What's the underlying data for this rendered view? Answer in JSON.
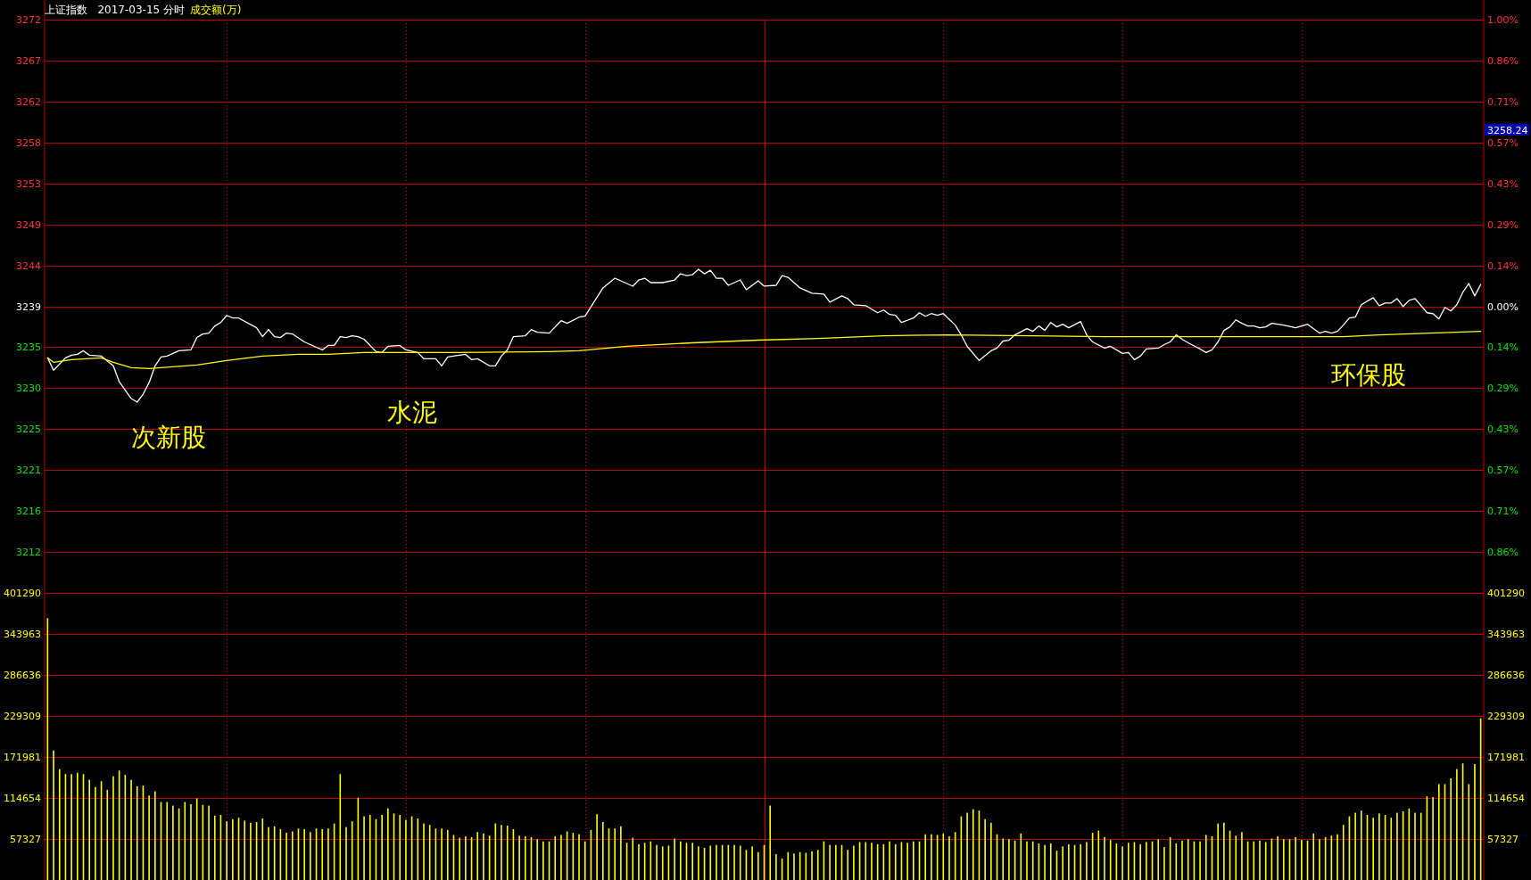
{
  "chart_data": [
    {
      "type": "line",
      "title": "上证指数   2017-03-15 分时",
      "tick_labels": "y",
      "grid": true,
      "categories": [
        null,
        null,
        null,
        null,
        null,
        null,
        null,
        null,
        null,
        null,
        null,
        null,
        null,
        null,
        null,
        null,
        null,
        null,
        null,
        null,
        null,
        null,
        null,
        null,
        null,
        null,
        null,
        null,
        null,
        null,
        null,
        null,
        null,
        null,
        null,
        null,
        null,
        null,
        null,
        null,
        null,
        null,
        null,
        null,
        null,
        null,
        null,
        null,
        null,
        null,
        null,
        null,
        null,
        null,
        null,
        null,
        null,
        null,
        null,
        null,
        null,
        null,
        null,
        null,
        null,
        null,
        null,
        null,
        null,
        null,
        null,
        null,
        null,
        null,
        null,
        null,
        null,
        null,
        null,
        null,
        null,
        null,
        null,
        null,
        null,
        null,
        null,
        null,
        null,
        null,
        null,
        null,
        null,
        null,
        null,
        null,
        null,
        null,
        null,
        null,
        null,
        null,
        null,
        null,
        null,
        null,
        null,
        null,
        null,
        null,
        null,
        null,
        null,
        null,
        null,
        null,
        null,
        null,
        null,
        null,
        null,
        null,
        null,
        null,
        null,
        null,
        null,
        null,
        null,
        null,
        null,
        null,
        null,
        null,
        null,
        null,
        null,
        null,
        null,
        null,
        null,
        null,
        null,
        null,
        null,
        null,
        null,
        null,
        null,
        null,
        null,
        null,
        null,
        null,
        null,
        null,
        null,
        null,
        null,
        null,
        null,
        null,
        null,
        null,
        null,
        null,
        null,
        null,
        null,
        null,
        null,
        null,
        null,
        null,
        null,
        null,
        null,
        null,
        null,
        null,
        null,
        null,
        null,
        null,
        null,
        null,
        null,
        null,
        null,
        null,
        null,
        null,
        null,
        null,
        null,
        null,
        null,
        null,
        null,
        null,
        null,
        null,
        null,
        null,
        null,
        null,
        null,
        null,
        null,
        null,
        null,
        null,
        null,
        null,
        null,
        null,
        null,
        null,
        null,
        null,
        null,
        null,
        null,
        null,
        null,
        null,
        null,
        null,
        null,
        null,
        null,
        null,
        null,
        null,
        null,
        null,
        null,
        null,
        null,
        null,
        null
      ],
      "series": [
        {
          "color": "#ffffff",
          "values": [
            3233.5,
            3232.1,
            null,
            3233.5,
            3233.8,
            3233.9,
            3234.3,
            3233.8,
            null,
            3233.7,
            null,
            3232.6,
            3230.8,
            null,
            3228.9,
            3228.5,
            3229.4,
            3230.7,
            3232.6,
            3233.6,
            3233.7,
            null,
            3234.3,
            null,
            3234.4,
            3235.8,
            3236.2,
            3236.3,
            3237.1,
            3237.5,
            3238.3,
            3238.0,
            3238.0,
            null,
            null,
            3236.9,
            3235.9,
            3236.7,
            3235.9,
            3235.8,
            3236.3,
            3236.2,
            null,
            3235.3,
            3235.0,
            null,
            3234.4,
            3234.9,
            3234.9,
            3235.9,
            3235.8,
            3236.0,
            3235.9,
            3235.6,
            null,
            3234.2,
            3234.1,
            3234.8,
            null,
            3234.9,
            3234.4,
            null,
            3234.1,
            3233.4,
            null,
            3233.4,
            3232.6,
            3233.6,
            null,
            null,
            3233.9,
            3233.3,
            3233.4,
            null,
            3232.6,
            3232.6,
            3233.7,
            3234.4,
            3235.9,
            null,
            3236.0,
            3236.7,
            3236.4,
            null,
            3236.3,
            null,
            3237.7,
            3237.4,
            null,
            3238.1,
            3238.2,
            null,
            null,
            3241.4,
            null,
            3242.5,
            null,
            null,
            3241.6,
            3242.3,
            3242.5,
            3242.0,
            null,
            3242.0,
            null,
            3242.3,
            3243.0,
            3242.8,
            3242.9,
            3243.5,
            3243.0,
            3243.4,
            3242.5,
            3242.5,
            3241.7,
            null,
            3242.3,
            3241.2,
            null,
            3242.2,
            3241.6,
            null,
            3241.7,
            3242.8,
            3242.6,
            null,
            3241.4,
            null,
            3240.8,
            null,
            3240.7,
            3239.8,
            null,
            3240.5,
            3240.2,
            3239.5,
            null,
            3239.4,
            null,
            3238.6,
            3238.9,
            3238.4,
            3238.3,
            3237.5,
            null,
            3238.0,
            3238.6,
            3238.2,
            3238.5,
            3238.3,
            3238.5,
            null,
            3237.2,
            3236.1,
            3234.8,
            null,
            3233.2,
            null,
            3234.3,
            3234.6,
            3235.4,
            3235.5,
            3236.1,
            null,
            3236.8,
            3236.5,
            3237.1,
            3236.6,
            3237.5,
            3237.0,
            3237.3,
            3236.9,
            null,
            3237.6,
            3236.1,
            3235.3,
            null,
            3234.6,
            3234.8,
            null,
            3234.0,
            3234.1,
            3233.3,
            3233.7,
            3234.5,
            null,
            3234.6,
            3235.0,
            3235.3,
            3236.1,
            3235.6,
            3235.2,
            null,
            3234.5,
            3234.1,
            3234.4,
            3235.3,
            3236.6,
            3237.0,
            3237.8,
            3237.4,
            3237.1,
            3237.1,
            3236.9,
            3237.0,
            3237.4,
            null,
            3237.2,
            null,
            3236.9,
            null,
            3237.3,
            null,
            3236.3,
            3236.5,
            3236.3,
            3236.5,
            3237.2,
            3238.0,
            3238.1,
            3239.5,
            null,
            3240.3,
            3239.4,
            3239.7,
            3239.7,
            3240.2,
            3239.3,
            3240.0,
            3240.2,
            null,
            3238.6,
            3238.5,
            3237.9,
            3239.2,
            3238.8,
            3239.5,
            3240.9,
            3241.9,
            3240.5,
            3241.8
          ]
        },
        {
          "color": "#ffff00",
          "values": [
            3233.5,
            3233.0,
            null,
            null,
            3233.3,
            null,
            null,
            null,
            null,
            3233.5,
            null,
            3233.0,
            null,
            null,
            3232.4,
            null,
            null,
            3232.3,
            null,
            null,
            null,
            null,
            null,
            null,
            null,
            3232.7,
            null,
            null,
            null,
            null,
            3233.2,
            null,
            null,
            null,
            null,
            null,
            3233.7,
            null,
            null,
            null,
            null,
            null,
            3233.9,
            null,
            null,
            null,
            null,
            3233.9,
            null,
            null,
            null,
            null,
            null,
            3234.1,
            null,
            null,
            null,
            null,
            3234.1,
            null,
            null,
            null,
            null,
            null,
            null,
            null,
            null,
            null,
            null,
            3234.1,
            null,
            null,
            null,
            null,
            null,
            null,
            null,
            null,
            null,
            null,
            null,
            null,
            null,
            null,
            3234.2,
            null,
            null,
            null,
            null,
            3234.3,
            null,
            null,
            null,
            null,
            null,
            null,
            null,
            3234.8,
            null,
            null,
            null,
            null,
            null,
            null,
            null,
            null,
            null,
            null,
            3235.2,
            null,
            null,
            null,
            null,
            null,
            null,
            null,
            null,
            null,
            null,
            3235.5,
            null,
            null,
            null,
            null,
            null,
            null,
            null,
            null,
            null,
            3235.7,
            null,
            null,
            null,
            null,
            null,
            null,
            null,
            null,
            null,
            null,
            3236.0,
            null,
            null,
            null,
            null,
            null,
            null,
            null,
            null,
            null,
            null,
            3236.1,
            null,
            null,
            null,
            null,
            null,
            null,
            null,
            null,
            null,
            null,
            null,
            null,
            null,
            3236.0,
            null,
            null,
            null,
            null,
            null,
            null,
            null,
            null,
            null,
            null,
            null,
            3235.9,
            null,
            null,
            null,
            null,
            null,
            null,
            null,
            null,
            null,
            null,
            null,
            null,
            null,
            null,
            null,
            3235.9,
            null,
            null,
            null,
            null,
            null,
            null,
            null,
            null,
            null,
            null,
            null,
            null,
            null,
            null,
            null,
            null,
            null,
            null,
            null,
            null,
            null,
            null,
            null,
            3235.9,
            null,
            null,
            null,
            null,
            null,
            3236.1,
            null,
            null,
            null,
            null,
            null,
            null,
            null,
            null,
            null,
            null,
            null,
            null,
            null,
            null,
            null,
            null,
            3236.5
          ]
        }
      ],
      "ylim": [
        3206.94,
        3271.72
      ],
      "yticks": [
        {
          "value": 3211.57,
          "label": "3212"
        },
        {
          "value": 3216.2,
          "label": "3216"
        },
        {
          "value": 3220.82,
          "label": "3221"
        },
        {
          "value": 3225.45,
          "label": "3225"
        },
        {
          "value": 3230.08,
          "label": "3230"
        },
        {
          "value": 3234.7,
          "label": "3235"
        },
        {
          "value": 3239.33,
          "label": "3239"
        },
        {
          "value": 3243.96,
          "label": "3244"
        },
        {
          "value": 3248.58,
          "label": "3249"
        },
        {
          "value": 3253.21,
          "label": "3253"
        },
        {
          "value": 3257.84,
          "label": "3258"
        },
        {
          "value": 3262.46,
          "label": "3262"
        },
        {
          "value": 3267.09,
          "label": "3267"
        },
        {
          "value": 3271.72,
          "label": "3272"
        }
      ],
      "y2lim": [
        -1.0,
        1.0
      ],
      "y2ticks": [
        {
          "value": -0.857,
          "label": "0.86%"
        },
        {
          "value": -0.714,
          "label": "0.71%"
        },
        {
          "value": -0.571,
          "label": "0.57%"
        },
        {
          "value": -0.429,
          "label": "0.43%"
        },
        {
          "value": -0.286,
          "label": "0.29%"
        },
        {
          "value": -0.143,
          "label": "0.14%"
        },
        {
          "value": 0,
          "label": "0.00%"
        },
        {
          "value": 0.143,
          "label": "0.14%"
        },
        {
          "value": 0.286,
          "label": "0.29%"
        },
        {
          "value": 0.429,
          "label": "0.43%"
        },
        {
          "value": 0.571,
          "label": "0.57%"
        },
        {
          "value": 0.714,
          "label": "0.71%"
        },
        {
          "value": 0.857,
          "label": "0.86%"
        },
        {
          "value": 1.0,
          "label": "1.00%"
        }
      ],
      "annotations": [
        "次新股",
        "水泥",
        "环保股",
        "3258.24"
      ],
      "subtitle": "成交额(万)"
    },
    {
      "type": "bar",
      "tick_labels": "y",
      "grid": true,
      "categories": [
        null,
        null,
        null,
        null,
        null,
        null,
        null,
        null,
        null,
        null,
        null,
        null,
        null,
        null,
        null,
        null,
        null,
        null,
        null,
        null,
        null,
        null,
        null,
        null,
        null,
        null,
        null,
        null,
        null,
        null,
        null,
        null,
        null,
        null,
        null,
        null,
        null,
        null,
        null,
        null,
        null,
        null,
        null,
        null,
        null,
        null,
        null,
        null,
        null,
        null,
        null,
        null,
        null,
        null,
        null,
        null,
        null,
        null,
        null,
        null,
        null,
        null,
        null,
        null,
        null,
        null,
        null,
        null,
        null,
        null,
        null,
        null,
        null,
        null,
        null,
        null,
        null,
        null,
        null,
        null,
        null,
        null,
        null,
        null,
        null,
        null,
        null,
        null,
        null,
        null,
        null,
        null,
        null,
        null,
        null,
        null,
        null,
        null,
        null,
        null,
        null,
        null,
        null,
        null,
        null,
        null,
        null,
        null,
        null,
        null,
        null,
        null,
        null,
        null,
        null,
        null,
        null,
        null,
        null,
        null,
        null,
        null,
        null,
        null,
        null,
        null,
        null,
        null,
        null,
        null,
        null,
        null,
        null,
        null,
        null,
        null,
        null,
        null,
        null,
        null,
        null,
        null,
        null,
        null,
        null,
        null,
        null,
        null,
        null,
        null,
        null,
        null,
        null,
        null,
        null,
        null,
        null,
        null,
        null,
        null,
        null,
        null,
        null,
        null,
        null,
        null,
        null,
        null,
        null,
        null,
        null,
        null,
        null,
        null,
        null,
        null,
        null,
        null,
        null,
        null,
        null,
        null,
        null,
        null,
        null,
        null,
        null,
        null,
        null,
        null,
        null,
        null,
        null,
        null,
        null,
        null,
        null,
        null,
        null,
        null,
        null,
        null,
        null,
        null,
        null,
        null,
        null,
        null,
        null,
        null,
        null,
        null,
        null,
        null,
        null,
        null,
        null,
        null,
        null,
        null,
        null,
        null,
        null,
        null,
        null,
        null,
        null,
        null,
        null,
        null,
        null,
        null,
        null,
        null,
        null,
        null,
        null,
        null,
        null,
        null,
        null
      ],
      "series": [
        {
          "color": "#ffff00",
          "values": [
            366000,
            181000,
            155000,
            148000,
            148000,
            150000,
            148000,
            140000,
            130000,
            138000,
            126000,
            145000,
            153000,
            147000,
            140000,
            131000,
            132000,
            118000,
            124000,
            109000,
            109000,
            104000,
            100000,
            109000,
            106000,
            114000,
            105000,
            104000,
            90000,
            91000,
            82000,
            85000,
            87000,
            83000,
            80000,
            81000,
            86000,
            74000,
            75000,
            71000,
            66000,
            68000,
            72000,
            71000,
            67000,
            72000,
            71000,
            72000,
            79000,
            148000,
            74000,
            82000,
            115000,
            89000,
            91000,
            85000,
            91000,
            100000,
            93000,
            91000,
            84000,
            89000,
            86000,
            79000,
            77000,
            72000,
            72000,
            70000,
            63000,
            59000,
            61000,
            60000,
            67000,
            65000,
            62000,
            79000,
            77000,
            76000,
            71000,
            62000,
            61000,
            60000,
            57000,
            54000,
            54000,
            61000,
            63000,
            68000,
            66000,
            64000,
            54000,
            70000,
            92000,
            81000,
            72000,
            72000,
            75000,
            52000,
            59000,
            50000,
            52000,
            54000,
            49000,
            47000,
            48000,
            58000,
            54000,
            52000,
            52000,
            47000,
            45000,
            48000,
            49000,
            49000,
            49000,
            49000,
            48000,
            42000,
            47000,
            39000,
            49000,
            104000,
            36000,
            30000,
            39000,
            37000,
            39000,
            38000,
            40000,
            42000,
            54000,
            49000,
            49000,
            49000,
            42000,
            48000,
            53000,
            53000,
            52000,
            50000,
            50000,
            54000,
            50000,
            53000,
            52000,
            54000,
            54000,
            64000,
            64000,
            63000,
            65000,
            61000,
            67000,
            89000,
            94000,
            99000,
            97000,
            85000,
            80000,
            64000,
            58000,
            57000,
            55000,
            65000,
            54000,
            54000,
            51000,
            49000,
            51000,
            41000,
            47000,
            50000,
            49000,
            50000,
            53000,
            66000,
            69000,
            60000,
            56000,
            51000,
            47000,
            52000,
            53000,
            50000,
            53000,
            54000,
            57000,
            46000,
            60000,
            51000,
            55000,
            57000,
            54000,
            54000,
            63000,
            61000,
            79000,
            80000,
            69000,
            62000,
            67000,
            54000,
            54000,
            55000,
            53000,
            58000,
            61000,
            57000,
            57000,
            60000,
            56000,
            55000,
            65000,
            57000,
            60000,
            62000,
            64000,
            77000,
            89000,
            94000,
            97000,
            91000,
            87000,
            93000,
            91000,
            87000,
            94000,
            96000,
            100000,
            94000,
            94000,
            117000,
            116000,
            134000,
            134000,
            142000,
            155000,
            163000,
            134000,
            162000,
            226000
          ]
        }
      ],
      "ylim": [
        0,
        401290
      ],
      "yticks": [
        57327,
        114654,
        171981,
        229309,
        286636,
        343963,
        401290
      ],
      "y2lim": [
        0,
        401290
      ],
      "y2ticks": [
        57327,
        114654,
        171981,
        229309,
        286636,
        343963,
        401290
      ]
    }
  ]
}
